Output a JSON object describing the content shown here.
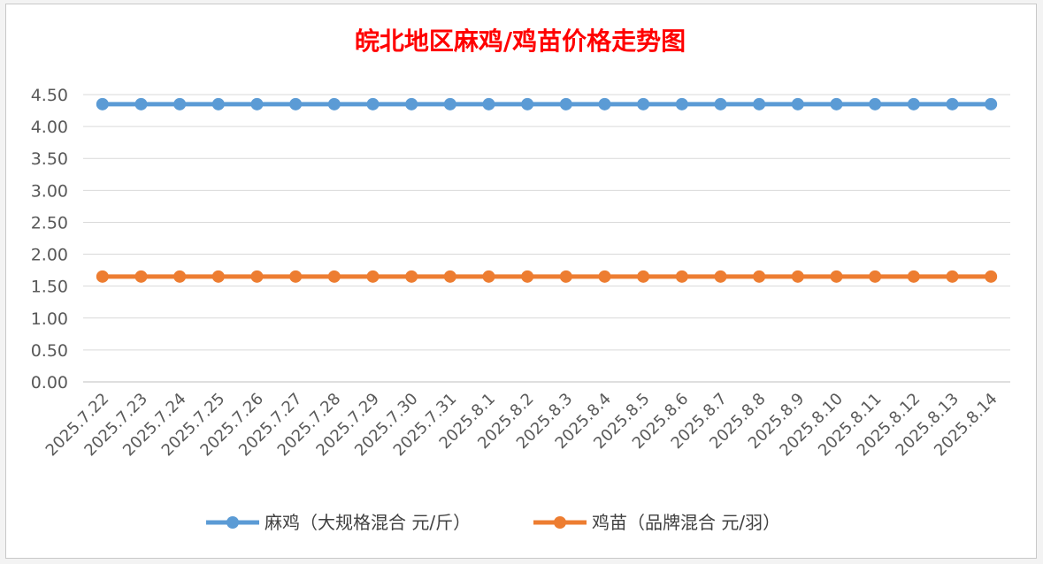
{
  "chart_data": {
    "type": "line",
    "title": "皖北地区麻鸡/鸡苗价格走势图",
    "title_color": "#ff0000",
    "categories": [
      "2025.7.22",
      "2025.7.23",
      "2025.7.24",
      "2025.7.25",
      "2025.7.26",
      "2025.7.27",
      "2025.7.28",
      "2025.7.29",
      "2025.7.30",
      "2025.7.31",
      "2025.8.1",
      "2025.8.2",
      "2025.8.3",
      "2025.8.4",
      "2025.8.5",
      "2025.8.6",
      "2025.8.7",
      "2025.8.8",
      "2025.8.9",
      "2025.8.10",
      "2025.8.11",
      "2025.8.12",
      "2025.8.13",
      "2025.8.14"
    ],
    "ylim": [
      0,
      4.5
    ],
    "yticks": [
      "0.00",
      "0.50",
      "1.00",
      "1.50",
      "2.00",
      "2.50",
      "3.00",
      "3.50",
      "4.00",
      "4.50"
    ],
    "grid": true,
    "legend_position": "bottom",
    "series": [
      {
        "name": "麻鸡（大规格混合 元/斤）",
        "color": "#5b9bd5",
        "values": [
          4.35,
          4.35,
          4.35,
          4.35,
          4.35,
          4.35,
          4.35,
          4.35,
          4.35,
          4.35,
          4.35,
          4.35,
          4.35,
          4.35,
          4.35,
          4.35,
          4.35,
          4.35,
          4.35,
          4.35,
          4.35,
          4.35,
          4.35,
          4.35
        ]
      },
      {
        "name": "鸡苗（品牌混合 元/羽）",
        "color": "#ed7d31",
        "values": [
          1.65,
          1.65,
          1.65,
          1.65,
          1.65,
          1.65,
          1.65,
          1.65,
          1.65,
          1.65,
          1.65,
          1.65,
          1.65,
          1.65,
          1.65,
          1.65,
          1.65,
          1.65,
          1.65,
          1.65,
          1.65,
          1.65,
          1.65,
          1.65
        ]
      }
    ]
  }
}
